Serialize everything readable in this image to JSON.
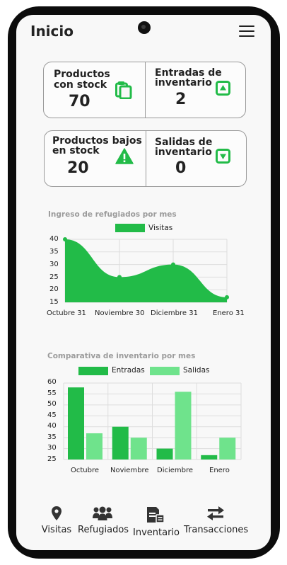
{
  "header": {
    "title": "Inicio"
  },
  "stats": [
    {
      "label_line1": "Productos",
      "label_line2": "con stock",
      "value": "70",
      "icon": "clipboard-icon"
    },
    {
      "label_line1": "Entradas de",
      "label_line2": "inventario",
      "value": "2",
      "icon": "arrow-up-box-icon"
    },
    {
      "label_line1": "Productos bajos",
      "label_line2": "en stock",
      "value": "20",
      "icon": "warning-icon"
    },
    {
      "label_line1": "Salidas de",
      "label_line2": "inventario",
      "value": "0",
      "icon": "arrow-down-box-icon"
    }
  ],
  "colors": {
    "primary": "#22bb48",
    "secondary": "#6fe38c",
    "text": "#222222"
  },
  "chart_data": [
    {
      "type": "area",
      "title": "Ingreso de refugiados por mes",
      "categories": [
        "Octubre 31",
        "Noviembre 30",
        "Diciembre 31",
        "Enero 31"
      ],
      "series": [
        {
          "name": "Visitas",
          "values": [
            40,
            25,
            30,
            17
          ]
        }
      ],
      "ylim": [
        15,
        40
      ],
      "yticks": [
        "40",
        "35",
        "30",
        "25",
        "20",
        "15"
      ],
      "grid": true,
      "legend": "top-center"
    },
    {
      "type": "bar",
      "title": "Comparativa de inventario por mes",
      "categories": [
        "Octubre",
        "Noviembre",
        "Diciembre",
        "Enero"
      ],
      "series": [
        {
          "name": "Entradas",
          "values": [
            58,
            40,
            30,
            27
          ]
        },
        {
          "name": "Salidas",
          "values": [
            37,
            35,
            56,
            35
          ]
        }
      ],
      "ylim": [
        25,
        60
      ],
      "yticks": [
        "60",
        "55",
        "50",
        "45",
        "40",
        "35",
        "30",
        "25"
      ],
      "grid": true,
      "legend": "top-center"
    }
  ],
  "nav": [
    {
      "label": "Visitas",
      "icon": "map-pin-icon"
    },
    {
      "label": "Refugiados",
      "icon": "users-icon"
    },
    {
      "label": "Inventario",
      "icon": "document-icon"
    },
    {
      "label": "Transacciones",
      "icon": "exchange-icon"
    }
  ]
}
